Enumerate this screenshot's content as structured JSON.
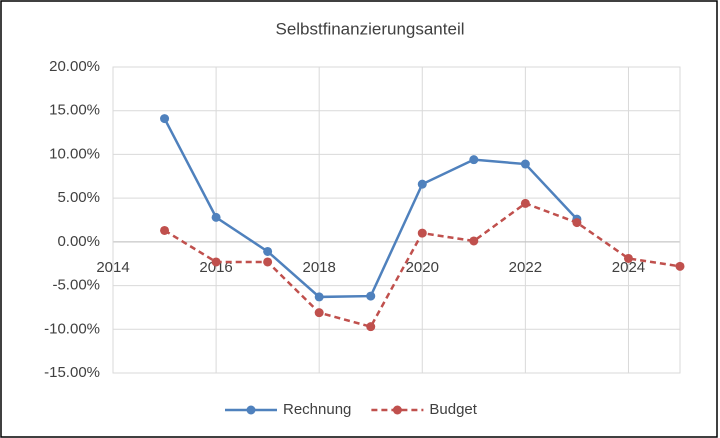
{
  "chart_data": {
    "type": "line",
    "title": "Selbstfinanzierungsanteil",
    "x": [
      2015,
      2016,
      2017,
      2018,
      2019,
      2020,
      2021,
      2022,
      2023,
      2024,
      2025
    ],
    "series": [
      {
        "name": "Rechnung",
        "color": "#4f81bd",
        "dash": false,
        "values": [
          14.1,
          2.8,
          -1.1,
          -6.3,
          -6.2,
          6.6,
          9.4,
          8.9,
          2.6,
          null,
          null
        ]
      },
      {
        "name": "Budget",
        "color": "#c0504d",
        "dash": true,
        "values": [
          1.3,
          -2.3,
          -2.3,
          -8.1,
          -9.7,
          1.0,
          0.1,
          4.4,
          2.2,
          -1.9,
          -2.8
        ]
      }
    ],
    "xlim": [
      2014,
      2025
    ],
    "xticks": [
      2014,
      2016,
      2018,
      2020,
      2022,
      2024
    ],
    "ylim": [
      -15,
      20
    ],
    "yticks": [
      {
        "value": -15,
        "label": "-15.00%"
      },
      {
        "value": -10,
        "label": "-10.00%"
      },
      {
        "value": -5,
        "label": "-5.00%"
      },
      {
        "value": 0,
        "label": "0.00%"
      },
      {
        "value": 5,
        "label": "5.00%"
      },
      {
        "value": 10,
        "label": "10.00%"
      },
      {
        "value": 15,
        "label": "15.00%"
      },
      {
        "value": 20,
        "label": "20.00%"
      }
    ],
    "grid": true,
    "legend": "bottom"
  }
}
